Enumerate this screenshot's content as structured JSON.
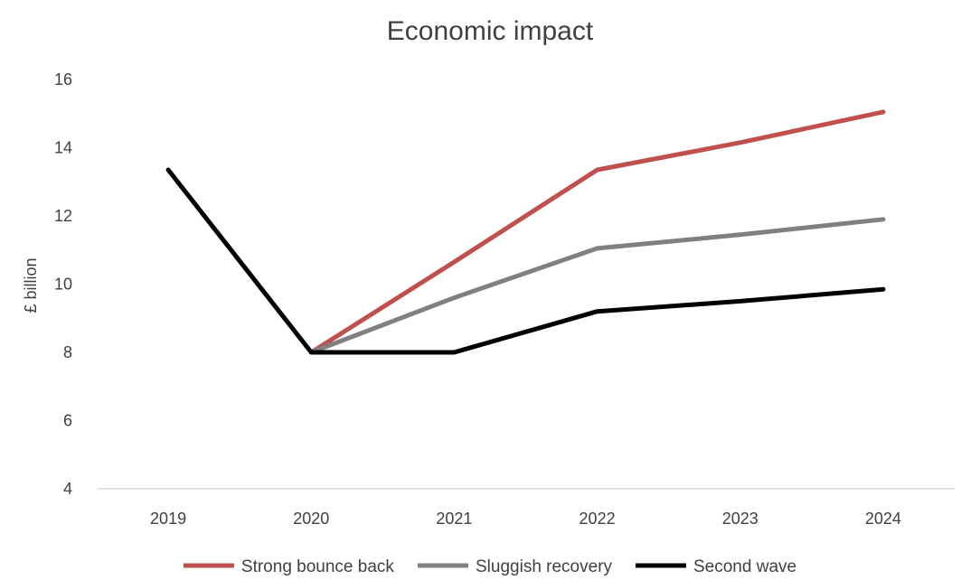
{
  "chart_data": {
    "type": "line",
    "title": "Economic impact",
    "xlabel": "",
    "ylabel": "£ billion",
    "categories": [
      "2019",
      "2020",
      "2021",
      "2022",
      "2023",
      "2024"
    ],
    "ylim": [
      4,
      16
    ],
    "yticks": [
      4,
      6,
      8,
      10,
      12,
      14,
      16
    ],
    "grid": false,
    "legend_position": "bottom",
    "series": [
      {
        "name": "Strong bounce back",
        "color": "#c0504d",
        "values": [
          null,
          8.0,
          10.65,
          13.35,
          14.15,
          15.05
        ]
      },
      {
        "name": "Sluggish recovery",
        "color": "#808080",
        "values": [
          null,
          8.0,
          9.6,
          11.05,
          11.45,
          11.9
        ]
      },
      {
        "name": "Second wave",
        "color": "#000000",
        "values": [
          13.35,
          8.0,
          8.0,
          9.2,
          9.5,
          9.85
        ]
      }
    ]
  }
}
